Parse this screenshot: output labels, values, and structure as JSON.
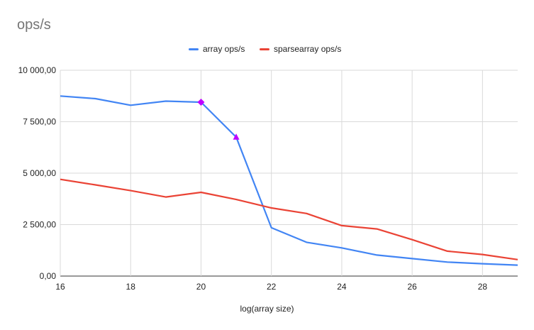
{
  "chart_data": {
    "type": "line",
    "title": "ops/s",
    "xlabel": "log(array size)",
    "ylabel": "",
    "xlim": [
      16,
      29
    ],
    "ylim": [
      0,
      10000
    ],
    "x_ticks": [
      16,
      18,
      20,
      22,
      24,
      26,
      28
    ],
    "x_tick_labels": [
      "16",
      "18",
      "20",
      "22",
      "24",
      "26",
      "28"
    ],
    "y_ticks": [
      0,
      2500,
      5000,
      7500,
      10000
    ],
    "y_tick_labels": [
      "0,00",
      "2 500,00",
      "5 000,00",
      "7 500,00",
      "10 000,00"
    ],
    "grid": true,
    "legend_position": "top",
    "x": [
      16,
      17,
      18,
      19,
      20,
      21,
      22,
      23,
      24,
      25,
      26,
      27,
      28,
      29
    ],
    "series": [
      {
        "name": "array ops/s",
        "color": "#4285f4",
        "values": [
          8750,
          8620,
          8300,
          8500,
          8450,
          6750,
          2350,
          1640,
          1370,
          1020,
          850,
          680,
          600,
          530
        ]
      },
      {
        "name": "sparsearray ops/s",
        "color": "#ea4335",
        "values": [
          4700,
          4430,
          4150,
          3840,
          4070,
          3720,
          3310,
          3040,
          2450,
          2290,
          1770,
          1210,
          1050,
          800
        ]
      }
    ],
    "markers": [
      {
        "series": "array ops/s",
        "x": 20,
        "y": 8450,
        "shape": "diamond",
        "color": "#c000ff"
      },
      {
        "series": "array ops/s",
        "x": 21,
        "y": 6750,
        "shape": "triangle",
        "color": "#c000ff"
      }
    ]
  }
}
